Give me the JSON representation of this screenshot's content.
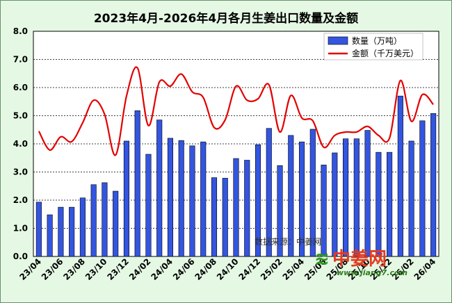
{
  "chart_data": {
    "type": "bar",
    "title": "2023年4月-2026年4月各月生姜出口数量及金额",
    "categories": [
      "23/04",
      "23/05",
      "23/06",
      "23/07",
      "23/08",
      "23/09",
      "23/10",
      "23/11",
      "23/12",
      "24/01",
      "24/02",
      "24/03",
      "24/04",
      "24/05",
      "24/06",
      "24/07",
      "24/08",
      "24/09",
      "24/10",
      "24/11",
      "24/12",
      "25/01",
      "25/02",
      "25/03",
      "25/04",
      "25/05",
      "25/06",
      "25/07",
      "25/08",
      "25/09",
      "25/10",
      "25/11",
      "25/12",
      "26/01",
      "26/02",
      "26/03",
      "26/04"
    ],
    "x_tick_labels": [
      "23/04",
      "23/06",
      "23/08",
      "23/10",
      "23/12",
      "24/02",
      "24/04",
      "24/06",
      "24/08",
      "24/10",
      "24/12",
      "25/02",
      "25/04",
      "25/06",
      "25/08",
      "25/10",
      "25/12",
      "26/02",
      "26/04"
    ],
    "series": [
      {
        "name": "数量（万吨）",
        "type": "bar",
        "color": "#3355e0",
        "values": [
          1.93,
          1.48,
          1.75,
          1.75,
          2.08,
          2.55,
          2.62,
          2.32,
          4.1,
          5.18,
          3.63,
          4.85,
          4.2,
          4.12,
          3.93,
          4.07,
          2.8,
          2.78,
          3.48,
          3.42,
          3.97,
          4.55,
          3.23,
          4.3,
          4.07,
          4.52,
          3.25,
          3.68,
          4.18,
          4.18,
          4.48,
          3.7,
          3.7,
          5.7,
          4.1,
          4.82,
          5.08
        ]
      },
      {
        "name": "金额（千万美元）",
        "type": "line",
        "color": "#e30000",
        "values": [
          4.45,
          3.78,
          4.25,
          4.08,
          4.75,
          5.55,
          5.05,
          3.6,
          5.7,
          6.7,
          4.65,
          6.2,
          6.05,
          6.48,
          5.85,
          5.65,
          4.58,
          4.85,
          6.05,
          5.55,
          5.6,
          6.1,
          4.42,
          5.72,
          4.92,
          4.82,
          3.88,
          4.3,
          4.42,
          4.42,
          4.62,
          4.3,
          4.2,
          6.25,
          4.8,
          5.75,
          5.4
        ]
      }
    ],
    "ylim": [
      0,
      8
    ],
    "y_tick_labels": [
      "0.0",
      "1.0",
      "2.0",
      "3.0",
      "4.0",
      "5.0",
      "6.0",
      "7.0",
      "8.0"
    ],
    "grid": true,
    "legend_position": "top-right",
    "annotation": "数据来源：中姜网",
    "watermark": {
      "main": "中姜网",
      "url": "www.jiang7.com"
    }
  }
}
